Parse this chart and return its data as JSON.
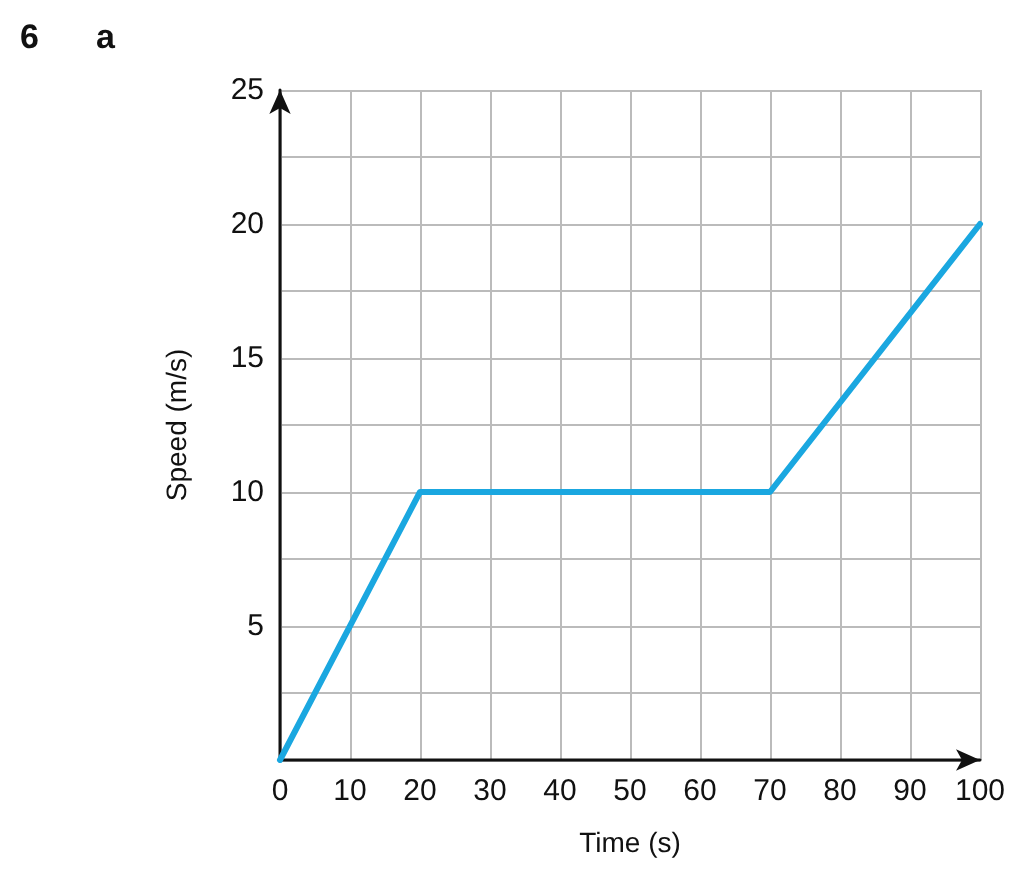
{
  "chart_data": {
    "type": "line",
    "annotations": [
      "6",
      "a"
    ],
    "xlabel": "Time (s)",
    "ylabel": "Speed (m/s)",
    "x": [
      0,
      20,
      70,
      100
    ],
    "series": [
      {
        "color": "#1aa7e0",
        "values": [
          0,
          10,
          10,
          20
        ]
      }
    ],
    "xlim": [
      0,
      100
    ],
    "ylim": [
      0,
      25
    ],
    "xticks": [
      0,
      10,
      20,
      30,
      40,
      50,
      60,
      70,
      80,
      90,
      100
    ],
    "yticks": [
      {
        "value": 0,
        "label": null
      },
      {
        "value": 2.5,
        "label": null
      },
      5,
      {
        "value": 7.5,
        "label": null
      },
      10,
      {
        "value": 12.5,
        "label": null
      },
      15,
      {
        "value": 17.5,
        "label": null
      },
      20,
      {
        "value": 22.5,
        "label": null
      },
      25
    ],
    "grid": true,
    "marker": "none",
    "line_style": "solid"
  }
}
